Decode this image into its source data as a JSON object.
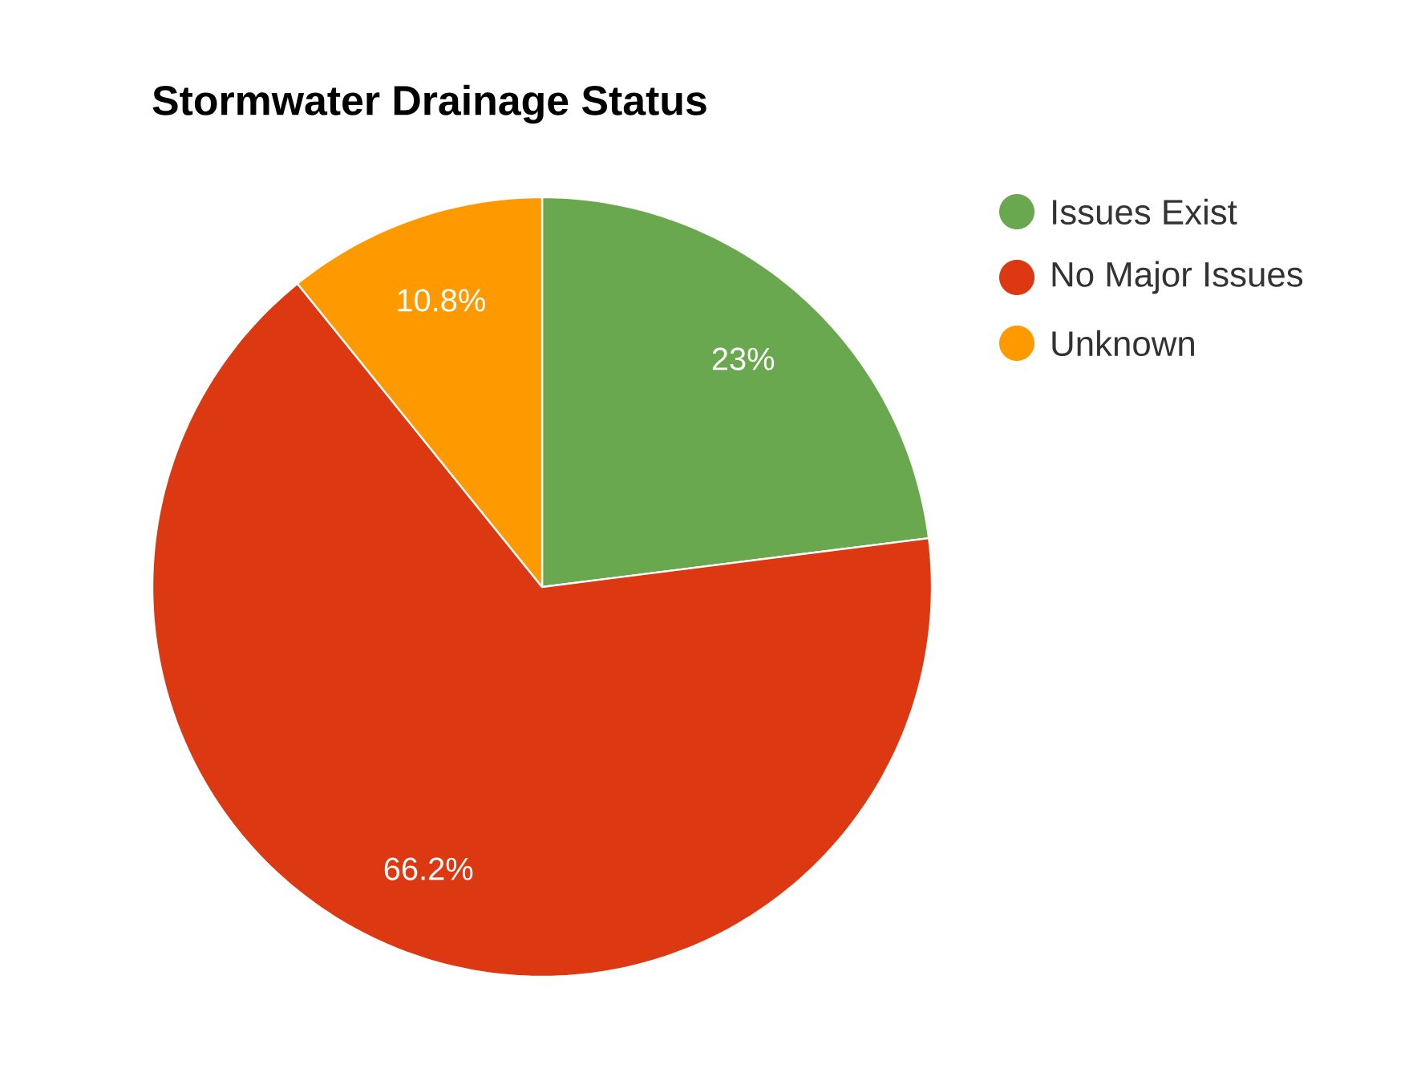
{
  "chart_data": {
    "type": "pie",
    "title": "Stormwater Drainage Status",
    "categories": [
      "Issues Exist",
      "No Major Issues",
      "Unknown"
    ],
    "values": [
      23,
      66.2,
      10.8
    ],
    "colors": [
      "#6aa84f",
      "#dc3912",
      "#ff9900"
    ],
    "value_labels": [
      "23%",
      "66.2%",
      "10.8%"
    ],
    "legend": "top right"
  }
}
